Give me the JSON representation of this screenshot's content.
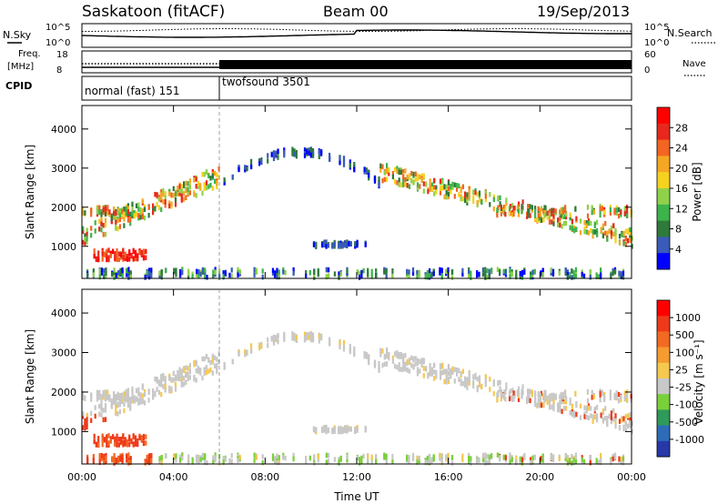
{
  "header": {
    "station": "Saskatoon (fitACF)",
    "beam": "Beam 00",
    "date": "19/Sep/2013"
  },
  "top_panels": {
    "nsky_label": "N.Sky",
    "nsky_ticks": [
      "10^5",
      "10^0"
    ],
    "nsearch_label": "N.Search",
    "freq_label_1": "Freq.",
    "freq_label_2": "[MHz]",
    "freq_ticks": [
      "18",
      "8"
    ],
    "nave_label": "Nave",
    "nave_ticks": [
      "60",
      "0"
    ],
    "cpid_label": "CPID",
    "cpid_segments": [
      {
        "name": "normal (fast) 151",
        "start_hour": 0,
        "end_hour": 6
      },
      {
        "name": "twofsound 3501",
        "start_hour": 6,
        "end_hour": 24
      }
    ]
  },
  "chart_data": [
    {
      "type": "heatmap",
      "title": "",
      "quantity": "Power",
      "xlabel": "Time UT",
      "ylabel": "Slant Range [km]",
      "xlim_hours": [
        0,
        24
      ],
      "ylim_km": [
        180,
        4600
      ],
      "yticks": [
        "1000",
        "2000",
        "3000",
        "4000"
      ],
      "colorbar": {
        "label": "Power [dB]",
        "ticks": [
          "28",
          "24",
          "20",
          "16",
          "12",
          "8",
          "4"
        ],
        "colors": [
          "#0000ff",
          "#3a5bb8",
          "#2f7a3a",
          "#3cb44b",
          "#8fd24a",
          "#f5d21f",
          "#f5a623",
          "#f26522",
          "#e8281e",
          "#ff0000"
        ]
      },
      "echo_bands": [
        {
          "desc": "near range band",
          "range_km": [
            200,
            420
          ],
          "hours": [
            0.2,
            24
          ],
          "level": "low-mid"
        },
        {
          "desc": "early strong echoes",
          "range_km": [
            600,
            900
          ],
          "hours": [
            0.5,
            2.8
          ],
          "level": "high"
        },
        {
          "desc": "morning ascending band",
          "range_km_start": [
            1000,
            1800
          ],
          "range_km_end": [
            2600,
            3300
          ],
          "hours": [
            0,
            6
          ],
          "level": "mid-high"
        },
        {
          "desc": "midday arch",
          "range_km_peak": 3400,
          "hours": [
            6,
            13
          ],
          "level": "low"
        },
        {
          "desc": "afternoon descending band",
          "range_km_start": [
            2600,
            3100
          ],
          "range_km_end": [
            1000,
            1500
          ],
          "hours": [
            13,
            24
          ],
          "level": "mid-high"
        }
      ]
    },
    {
      "type": "heatmap",
      "title": "",
      "quantity": "Velocity",
      "xlabel": "Time UT",
      "ylabel": "Slant Range [km]",
      "xlim_hours": [
        0,
        24
      ],
      "ylim_km": [
        180,
        4600
      ],
      "yticks": [
        "1000",
        "2000",
        "3000",
        "4000"
      ],
      "xticks": [
        "00:00",
        "04:00",
        "08:00",
        "12:00",
        "16:00",
        "20:00",
        "00:00"
      ],
      "colorbar": {
        "label": "Velocity [m s⁻¹]",
        "ticks": [
          "1000",
          "500",
          "100",
          "25",
          "-25",
          "-100",
          "-500",
          "-1000"
        ],
        "colors": [
          "#2838a8",
          "#2e6cb8",
          "#2f9a5a",
          "#7ad03a",
          "#c8c8c8",
          "#f5c850",
          "#f59b30",
          "#f26a22",
          "#ee3a1a",
          "#ff0000"
        ]
      }
    }
  ]
}
